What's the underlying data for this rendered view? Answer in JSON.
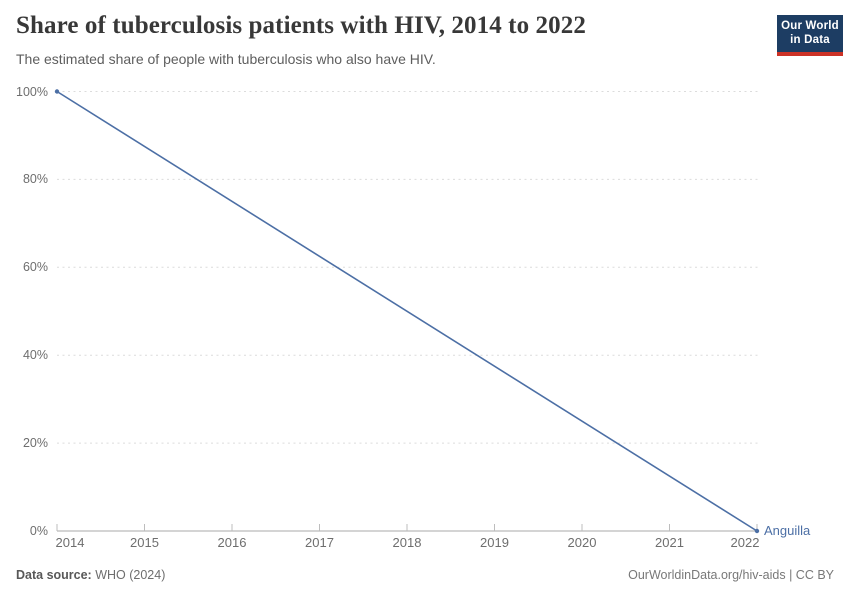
{
  "header": {
    "title": "Share of tuberculosis patients with HIV, 2014 to 2022",
    "subtitle": "The estimated share of people with tuberculosis who also have HIV.",
    "logo": {
      "line1": "Our World",
      "line2": "in Data"
    }
  },
  "chart_data": {
    "type": "line",
    "title": "Share of tuberculosis patients with HIV, 2014 to 2022",
    "subtitle": "The estimated share of people with tuberculosis who also have HIV.",
    "xlabel": "",
    "ylabel": "",
    "x": {
      "min": 2014,
      "max": 2022,
      "ticks": [
        2014,
        2015,
        2016,
        2017,
        2018,
        2019,
        2020,
        2021,
        2022
      ]
    },
    "y": {
      "min": 0,
      "max": 100,
      "ticks": [
        0,
        20,
        40,
        60,
        80,
        100
      ],
      "suffix": "%"
    },
    "grid": "horizontal-dashed",
    "legend_position": "line-end-label",
    "series": [
      {
        "name": "Anguilla",
        "color": "#4c6fa5",
        "points": [
          {
            "x": 2014,
            "y": 100
          },
          {
            "x": 2022,
            "y": 0
          }
        ]
      }
    ]
  },
  "colors": {
    "line": "#4c6fa5",
    "grid": "#dcdcdc",
    "axis": "#a8a8a8",
    "tick": "#bdbdbd",
    "logo_bg": "#1d3d63",
    "logo_accent": "#cc3226"
  },
  "footer": {
    "source_label": "Data source:",
    "source_value": "WHO (2024)",
    "link_text": "OurWorldinData.org/hiv-aids | CC BY"
  }
}
